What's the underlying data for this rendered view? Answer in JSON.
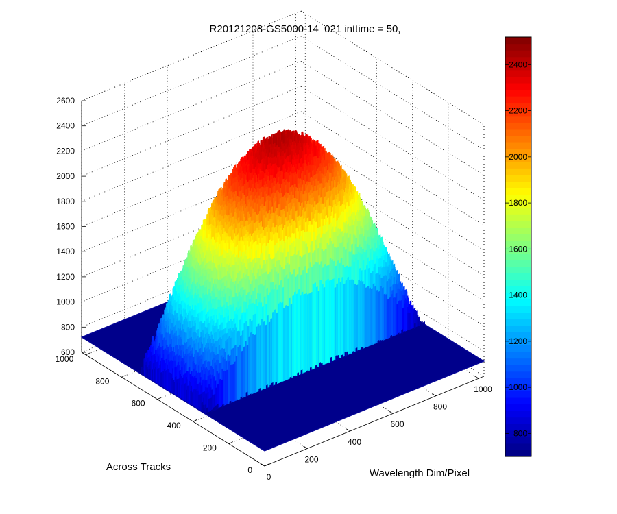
{
  "chart_data": {
    "type": "surface3d",
    "title": "R20121208-GS5000-14_021 inttime = 50,",
    "xlabel": "Wavelength Dim/Pixel",
    "ylabel": "Across Tracks",
    "zlabel": "",
    "xlim": [
      0,
      1024
    ],
    "ylim": [
      0,
      1024
    ],
    "zlim": [
      600,
      2600
    ],
    "xticks": [
      "0",
      "200",
      "400",
      "600",
      "800",
      "1000"
    ],
    "yticks": [
      "0",
      "200",
      "400",
      "600",
      "800",
      "1000"
    ],
    "zticks": [
      "600",
      "800",
      "1000",
      "1200",
      "1400",
      "1600",
      "1800",
      "2000",
      "2200",
      "2400",
      "2600"
    ],
    "grid": true,
    "colormap": "jet",
    "colorbar": {
      "range": [
        700,
        2520
      ],
      "ticks": [
        "800",
        "1000",
        "1200",
        "1400",
        "1600",
        "1800",
        "2000",
        "2200",
        "2400"
      ]
    },
    "surface": {
      "background_level": 720,
      "illuminated_wavelength_range": [
        0,
        1024
      ],
      "illuminated_track_range": [
        330,
        700
      ],
      "peak_value": 2400,
      "peak_wavelength": 500,
      "peak_track": 530
    }
  }
}
